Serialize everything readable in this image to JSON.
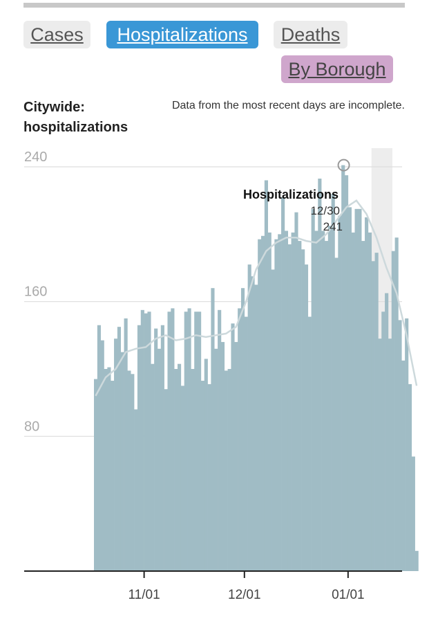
{
  "tabs": {
    "cases": "Cases",
    "hospitalizations": "Hospitalizations",
    "deaths": "Deaths",
    "by_borough": "By Borough"
  },
  "chart_header": {
    "title": "Citywide: hospitalizations",
    "note": "Data from the most recent days are incomplete."
  },
  "colors": {
    "bar": "#a0bcc5",
    "average_line": "#cdd9dc",
    "incomplete_band": "#ededed",
    "active_tab": "#3a97d6",
    "borough_tab": "#cfa6cc"
  },
  "chart_data": {
    "type": "bar",
    "x_start": "2020-10-17",
    "x_end": "2021-01-11",
    "x_ticks": [
      "2020-11-01",
      "2020-12-01",
      "2021-01-01"
    ],
    "x_tick_labels": [
      "11/01",
      "12/01",
      "01/01"
    ],
    "ylim": [
      0,
      250
    ],
    "y_ticks": [
      80,
      160,
      240
    ],
    "grid": true,
    "incomplete_from": "2021-01-08",
    "bars": [
      [
        "2020-10-17",
        114
      ],
      [
        "2020-10-18",
        146
      ],
      [
        "2020-10-19",
        137
      ],
      [
        "2020-10-20",
        120
      ],
      [
        "2020-10-21",
        121
      ],
      [
        "2020-10-22",
        113
      ],
      [
        "2020-10-23",
        138
      ],
      [
        "2020-10-24",
        145
      ],
      [
        "2020-10-25",
        130
      ],
      [
        "2020-10-26",
        150
      ],
      [
        "2020-10-27",
        119
      ],
      [
        "2020-10-28",
        117
      ],
      [
        "2020-10-29",
        96
      ],
      [
        "2020-10-30",
        146
      ],
      [
        "2020-10-31",
        155
      ],
      [
        "2020-11-01",
        153
      ],
      [
        "2020-11-02",
        154
      ],
      [
        "2020-11-03",
        123
      ],
      [
        "2020-11-04",
        144
      ],
      [
        "2020-11-05",
        132
      ],
      [
        "2020-11-06",
        146
      ],
      [
        "2020-11-07",
        108
      ],
      [
        "2020-11-08",
        154
      ],
      [
        "2020-11-09",
        156
      ],
      [
        "2020-11-10",
        120
      ],
      [
        "2020-11-11",
        123
      ],
      [
        "2020-11-12",
        110
      ],
      [
        "2020-11-13",
        154
      ],
      [
        "2020-11-14",
        156
      ],
      [
        "2020-11-15",
        120
      ],
      [
        "2020-11-16",
        154
      ],
      [
        "2020-11-17",
        154
      ],
      [
        "2020-11-18",
        113
      ],
      [
        "2020-11-19",
        126
      ],
      [
        "2020-11-20",
        111
      ],
      [
        "2020-11-21",
        168
      ],
      [
        "2020-11-22",
        132
      ],
      [
        "2020-11-23",
        155
      ],
      [
        "2020-11-24",
        136
      ],
      [
        "2020-11-25",
        119
      ],
      [
        "2020-11-26",
        120
      ],
      [
        "2020-11-27",
        147
      ],
      [
        "2020-11-28",
        136
      ],
      [
        "2020-11-29",
        156
      ],
      [
        "2020-11-30",
        168
      ],
      [
        "2020-12-01",
        151
      ],
      [
        "2020-12-02",
        182
      ],
      [
        "2020-12-03",
        175
      ],
      [
        "2020-12-04",
        170
      ],
      [
        "2020-12-05",
        197
      ],
      [
        "2020-12-06",
        199
      ],
      [
        "2020-12-07",
        232
      ],
      [
        "2020-12-08",
        201
      ],
      [
        "2020-12-09",
        179
      ],
      [
        "2020-12-10",
        197
      ],
      [
        "2020-12-11",
        200
      ],
      [
        "2020-12-12",
        222
      ],
      [
        "2020-12-13",
        202
      ],
      [
        "2020-12-14",
        194
      ],
      [
        "2020-12-15",
        201
      ],
      [
        "2020-12-16",
        213
      ],
      [
        "2020-12-17",
        196
      ],
      [
        "2020-12-18",
        191
      ],
      [
        "2020-12-19",
        182
      ],
      [
        "2020-12-20",
        151
      ],
      [
        "2020-12-21",
        215
      ],
      [
        "2020-12-22",
        202
      ],
      [
        "2020-12-23",
        233
      ],
      [
        "2020-12-24",
        202
      ],
      [
        "2020-12-25",
        196
      ],
      [
        "2020-12-26",
        205
      ],
      [
        "2020-12-27",
        224
      ],
      [
        "2020-12-28",
        186
      ],
      [
        "2020-12-29",
        211
      ],
      [
        "2020-12-30",
        241
      ],
      [
        "2020-12-31",
        235
      ]
    ],
    "bars_tail": [
      [
        "2021-01-01",
        216
      ],
      [
        "2021-01-02",
        201
      ],
      [
        "2021-01-03",
        215
      ],
      [
        "2021-01-04",
        215
      ],
      [
        "2021-01-05",
        196
      ],
      [
        "2021-01-06",
        210
      ],
      [
        "2021-01-07",
        201
      ],
      [
        "2021-01-08",
        184
      ],
      [
        "2021-01-09",
        189
      ],
      [
        "2021-01-10",
        138
      ],
      [
        "2021-01-11",
        154
      ],
      [
        "2021-01-12",
        165
      ],
      [
        "2021-01-13",
        138
      ],
      [
        "2021-01-14",
        190
      ],
      [
        "2021-01-15",
        198
      ],
      [
        "2021-01-16",
        149
      ],
      [
        "2021-01-17",
        125
      ],
      [
        "2021-01-18",
        150
      ],
      [
        "2021-01-19",
        111
      ],
      [
        "2021-01-20",
        68
      ],
      [
        "2021-01-21",
        12
      ]
    ],
    "average": [
      [
        "2020-10-17",
        104
      ],
      [
        "2020-10-20",
        115
      ],
      [
        "2020-10-23",
        120
      ],
      [
        "2020-10-26",
        130
      ],
      [
        "2020-10-29",
        132
      ],
      [
        "2020-11-01",
        133
      ],
      [
        "2020-11-04",
        138
      ],
      [
        "2020-11-07",
        140
      ],
      [
        "2020-11-10",
        137
      ],
      [
        "2020-11-13",
        138
      ],
      [
        "2020-11-16",
        140
      ],
      [
        "2020-11-19",
        139
      ],
      [
        "2020-11-22",
        140
      ],
      [
        "2020-11-25",
        141
      ],
      [
        "2020-11-28",
        145
      ],
      [
        "2020-12-01",
        160
      ],
      [
        "2020-12-04",
        179
      ],
      [
        "2020-12-07",
        190
      ],
      [
        "2020-12-10",
        195
      ],
      [
        "2020-12-13",
        198
      ],
      [
        "2020-12-16",
        198
      ],
      [
        "2020-12-19",
        196
      ],
      [
        "2020-12-22",
        195
      ],
      [
        "2020-12-25",
        200
      ],
      [
        "2020-12-28",
        208
      ],
      [
        "2020-12-31",
        216
      ],
      [
        "2021-01-03",
        220
      ],
      [
        "2021-01-06",
        212
      ],
      [
        "2021-01-09",
        198
      ],
      [
        "2021-01-12",
        180
      ],
      [
        "2021-01-15",
        165
      ],
      [
        "2021-01-18",
        140
      ],
      [
        "2021-01-21",
        110
      ]
    ],
    "annotation": {
      "title": "Hospitalizations",
      "date": "12/30",
      "value": "241",
      "x": "2020-12-30"
    }
  }
}
